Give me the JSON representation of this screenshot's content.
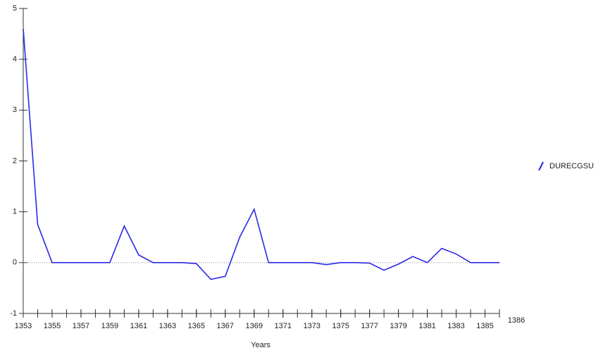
{
  "chart_data": {
    "type": "line",
    "x": [
      1353,
      1354,
      1355,
      1356,
      1357,
      1358,
      1359,
      1360,
      1361,
      1362,
      1363,
      1364,
      1365,
      1366,
      1367,
      1368,
      1369,
      1370,
      1371,
      1372,
      1373,
      1374,
      1375,
      1376,
      1377,
      1378,
      1379,
      1380,
      1381,
      1382,
      1383,
      1384,
      1385,
      1386
    ],
    "series": [
      {
        "name": "DURECGSU",
        "color": "#2a2ae6",
        "values": [
          4.6,
          0.75,
          0,
          0,
          0,
          0,
          0,
          0.72,
          0.15,
          0,
          0,
          0,
          -0.02,
          -0.33,
          -0.27,
          0.5,
          1.05,
          0,
          0,
          0,
          0,
          -0.04,
          0,
          0,
          -0.01,
          -0.15,
          -0.03,
          0.12,
          0,
          0.28,
          0.17,
          0,
          0,
          0
        ]
      }
    ],
    "xlabel": "Years",
    "xlim": [
      1353,
      1386
    ],
    "xticks": [
      1353,
      1355,
      1357,
      1359,
      1361,
      1363,
      1365,
      1367,
      1369,
      1371,
      1373,
      1375,
      1377,
      1379,
      1381,
      1383,
      1385,
      1386
    ],
    "ylim": [
      -1,
      5
    ],
    "yticks": [
      -1,
      0,
      1,
      2,
      3,
      4,
      5
    ],
    "zero_line": true,
    "legend": "right"
  }
}
